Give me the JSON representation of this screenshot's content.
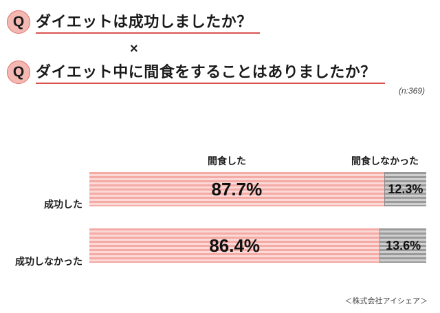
{
  "questions": [
    {
      "badge": "Q",
      "text": "ダイエットは成功しましたか？"
    },
    {
      "badge": "Q",
      "text": "ダイエット中に間食をすることはありましたか？"
    }
  ],
  "times_symbol": "×",
  "sample_size": "(n:369)",
  "source": "＜株式会社アイシェア＞",
  "colors": {
    "accent": "#e46b63",
    "pink": "#f4aaa5",
    "gray": "#9a9a9a"
  },
  "chart_data": {
    "type": "bar",
    "orientation": "horizontal",
    "stacked": true,
    "percent_stacked": true,
    "categories": [
      "成功した",
      "成功しなかった"
    ],
    "series": [
      {
        "name": "間食した",
        "values": [
          87.7,
          86.4
        ],
        "labels": [
          "87.7%",
          "86.4%"
        ],
        "color": "#f4aaa5"
      },
      {
        "name": "間食しなかった",
        "values": [
          12.3,
          13.6
        ],
        "labels": [
          "12.3%",
          "13.6%"
        ],
        "color": "#9a9a9a"
      }
    ],
    "xlim": [
      0,
      100
    ]
  }
}
